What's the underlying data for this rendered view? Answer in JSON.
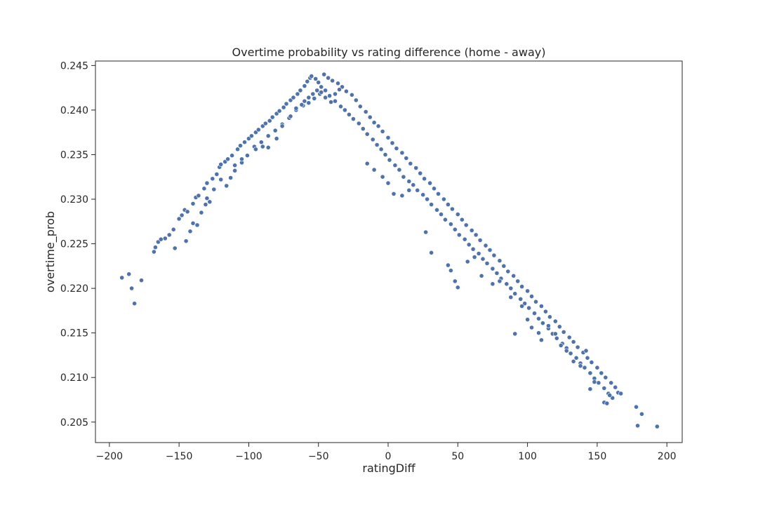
{
  "chart_data": {
    "type": "scatter",
    "title": "Overtime probability vs rating difference (home - away)",
    "xlabel": "ratingDiff",
    "ylabel": "overtime_prob",
    "xlim": [
      -210,
      211
    ],
    "ylim": [
      0.2027,
      0.2455
    ],
    "xticks": [
      -200,
      -150,
      -100,
      -50,
      0,
      50,
      100,
      150,
      200
    ],
    "yticks": [
      0.205,
      0.21,
      0.215,
      0.22,
      0.225,
      0.23,
      0.235,
      0.24,
      0.245
    ],
    "ytick_labels": [
      "0.205",
      "0.210",
      "0.215",
      "0.220",
      "0.225",
      "0.230",
      "0.235",
      "0.240",
      "0.245"
    ],
    "grid": false,
    "legend": "none",
    "color": "#4c72b0",
    "series": [
      {
        "points": [
          [
            -191,
            0.2212
          ],
          [
            -186,
            0.2216
          ],
          [
            -184,
            0.22
          ],
          [
            -182,
            0.2183
          ],
          [
            -177,
            0.2209
          ],
          [
            -168,
            0.2241
          ],
          [
            -167,
            0.2246
          ],
          [
            -165,
            0.2252
          ],
          [
            -163,
            0.2255
          ],
          [
            -160,
            0.2256
          ],
          [
            -157,
            0.226
          ],
          [
            -154,
            0.2266
          ],
          [
            -153,
            0.2245
          ],
          [
            -150,
            0.2278
          ],
          [
            -148,
            0.2282
          ],
          [
            -146,
            0.2288
          ],
          [
            -145,
            0.2253
          ],
          [
            -144,
            0.2286
          ],
          [
            -142,
            0.2264
          ],
          [
            -140,
            0.2295
          ],
          [
            -138,
            0.2302
          ],
          [
            -137,
            0.2271
          ],
          [
            -136,
            0.2304
          ],
          [
            -134,
            0.2285
          ],
          [
            -132,
            0.2312
          ],
          [
            -131,
            0.2294
          ],
          [
            -130,
            0.2318
          ],
          [
            -128,
            0.2297
          ],
          [
            -126,
            0.2323
          ],
          [
            -125,
            0.2311
          ],
          [
            -123,
            0.2328
          ],
          [
            -121,
            0.2336
          ],
          [
            -120,
            0.2339
          ],
          [
            -117,
            0.2342
          ],
          [
            -116,
            0.2315
          ],
          [
            -115,
            0.2345
          ],
          [
            -113,
            0.2324
          ],
          [
            -112,
            0.2349
          ],
          [
            -110,
            0.2332
          ],
          [
            -108,
            0.2356
          ],
          [
            -106,
            0.236
          ],
          [
            -105,
            0.2341
          ],
          [
            -103,
            0.2364
          ],
          [
            -101,
            0.2349
          ],
          [
            -100,
            0.2368
          ],
          [
            -98,
            0.2371
          ],
          [
            -96,
            0.2359
          ],
          [
            -95,
            0.2375
          ],
          [
            -93,
            0.2378
          ],
          [
            -91,
            0.2364
          ],
          [
            -90,
            0.2382
          ],
          [
            -88,
            0.2385
          ],
          [
            -86,
            0.2371
          ],
          [
            -85,
            0.2388
          ],
          [
            -83,
            0.2392
          ],
          [
            -81,
            0.2377
          ],
          [
            -80,
            0.2396
          ],
          [
            -78,
            0.2399
          ],
          [
            -76,
            0.2384
          ],
          [
            -75,
            0.2403
          ],
          [
            -73,
            0.2407
          ],
          [
            -71,
            0.2391
          ],
          [
            -70,
            0.2411
          ],
          [
            -68,
            0.2414
          ],
          [
            -66,
            0.24
          ],
          [
            -65,
            0.2418
          ],
          [
            -63,
            0.2422
          ],
          [
            -61,
            0.2405
          ],
          [
            -60,
            0.2427
          ],
          [
            -58,
            0.2432
          ],
          [
            -57,
            0.2408
          ],
          [
            -56,
            0.2436
          ],
          [
            -55,
            0.2438
          ],
          [
            -53,
            0.2413
          ],
          [
            -52,
            0.2435
          ],
          [
            -50,
            0.2431
          ],
          [
            -49,
            0.2418
          ],
          [
            -48,
            0.2426
          ],
          [
            -46,
            0.244
          ],
          [
            -45,
            0.2422
          ],
          [
            -43,
            0.2436
          ],
          [
            -42,
            0.2416
          ],
          [
            -40,
            0.2433
          ],
          [
            -38,
            0.241
          ],
          [
            -36,
            0.243
          ],
          [
            -34,
            0.2404
          ],
          [
            -33,
            0.2426
          ],
          [
            -31,
            0.24
          ],
          [
            -30,
            0.2421
          ],
          [
            -28,
            0.2395
          ],
          [
            -26,
            0.2417
          ],
          [
            -25,
            0.239
          ],
          [
            -23,
            0.2411
          ],
          [
            -21,
            0.2385
          ],
          [
            -20,
            0.2404
          ],
          [
            -18,
            0.2379
          ],
          [
            -16,
            0.2398
          ],
          [
            -15,
            0.2373
          ],
          [
            -13,
            0.2392
          ],
          [
            -11,
            0.2367
          ],
          [
            -10,
            0.2386
          ],
          [
            -8,
            0.2361
          ],
          [
            -7,
            0.2382
          ],
          [
            -5,
            0.2356
          ],
          [
            -4,
            0.2376
          ],
          [
            -2,
            0.235
          ],
          [
            0,
            0.2369
          ],
          [
            1,
            0.2344
          ],
          [
            3,
            0.2363
          ],
          [
            5,
            0.2338
          ],
          [
            6,
            0.2357
          ],
          [
            8,
            0.2333
          ],
          [
            10,
            0.2352
          ],
          [
            11,
            0.2325
          ],
          [
            13,
            0.2346
          ],
          [
            15,
            0.232
          ],
          [
            16,
            0.234
          ],
          [
            18,
            0.2316
          ],
          [
            20,
            0.2335
          ],
          [
            21,
            0.231
          ],
          [
            23,
            0.2329
          ],
          [
            25,
            0.2305
          ],
          [
            26,
            0.2323
          ],
          [
            28,
            0.23
          ],
          [
            30,
            0.2318
          ],
          [
            31,
            0.2294
          ],
          [
            33,
            0.2312
          ],
          [
            35,
            0.2288
          ],
          [
            36,
            0.2306
          ],
          [
            38,
            0.2283
          ],
          [
            40,
            0.23
          ],
          [
            41,
            0.2277
          ],
          [
            43,
            0.2294
          ],
          [
            45,
            0.2272
          ],
          [
            46,
            0.2289
          ],
          [
            48,
            0.2266
          ],
          [
            50,
            0.2283
          ],
          [
            51,
            0.226
          ],
          [
            53,
            0.2277
          ],
          [
            55,
            0.2255
          ],
          [
            56,
            0.2271
          ],
          [
            58,
            0.2249
          ],
          [
            60,
            0.2265
          ],
          [
            61,
            0.2244
          ],
          [
            63,
            0.226
          ],
          [
            65,
            0.2239
          ],
          [
            66,
            0.2254
          ],
          [
            68,
            0.2233
          ],
          [
            70,
            0.2248
          ],
          [
            71,
            0.2228
          ],
          [
            73,
            0.2243
          ],
          [
            75,
            0.2222
          ],
          [
            76,
            0.2237
          ],
          [
            78,
            0.2217
          ],
          [
            80,
            0.2231
          ],
          [
            81,
            0.2211
          ],
          [
            83,
            0.2225
          ],
          [
            85,
            0.2205
          ],
          [
            86,
            0.2219
          ],
          [
            88,
            0.22
          ],
          [
            90,
            0.2214
          ],
          [
            91,
            0.2194
          ],
          [
            93,
            0.2208
          ],
          [
            95,
            0.2188
          ],
          [
            96,
            0.2202
          ],
          [
            98,
            0.2183
          ],
          [
            100,
            0.2197
          ],
          [
            101,
            0.2178
          ],
          [
            103,
            0.2191
          ],
          [
            105,
            0.2172
          ],
          [
            106,
            0.2185
          ],
          [
            108,
            0.2166
          ],
          [
            110,
            0.218
          ],
          [
            111,
            0.2161
          ],
          [
            113,
            0.2174
          ],
          [
            115,
            0.2155
          ],
          [
            116,
            0.2168
          ],
          [
            118,
            0.2149
          ],
          [
            120,
            0.2163
          ],
          [
            121,
            0.2144
          ],
          [
            123,
            0.2157
          ],
          [
            125,
            0.2138
          ],
          [
            126,
            0.2151
          ],
          [
            128,
            0.2133
          ],
          [
            130,
            0.2145
          ],
          [
            131,
            0.2127
          ],
          [
            133,
            0.214
          ],
          [
            135,
            0.2122
          ],
          [
            136,
            0.2134
          ],
          [
            138,
            0.2116
          ],
          [
            140,
            0.2128
          ],
          [
            141,
            0.2111
          ],
          [
            143,
            0.2122
          ],
          [
            145,
            0.2105
          ],
          [
            146,
            0.2117
          ],
          [
            148,
            0.2099
          ],
          [
            150,
            0.2111
          ],
          [
            151,
            0.2094
          ],
          [
            153,
            0.2105
          ],
          [
            155,
            0.2088
          ],
          [
            156,
            0.21
          ],
          [
            158,
            0.2082
          ],
          [
            160,
            0.2094
          ],
          [
            161,
            0.2077
          ],
          [
            163,
            0.2089
          ],
          [
            165,
            0.2083
          ],
          [
            167,
            0.2082
          ],
          [
            145,
            0.2087
          ],
          [
            148,
            0.2095
          ],
          [
            155,
            0.2072
          ],
          [
            157,
            0.2071
          ],
          [
            159,
            0.208
          ],
          [
            178,
            0.2067
          ],
          [
            179,
            0.2046
          ],
          [
            182,
            0.2059
          ],
          [
            193,
            0.2045
          ],
          [
            -15,
            0.234
          ],
          [
            -10,
            0.2333
          ],
          [
            -4,
            0.2325
          ],
          [
            0,
            0.2318
          ],
          [
            4,
            0.2306
          ],
          [
            10,
            0.2304
          ],
          [
            15,
            0.231
          ],
          [
            27,
            0.2263
          ],
          [
            31,
            0.224
          ],
          [
            43,
            0.2226
          ],
          [
            45,
            0.222
          ],
          [
            48,
            0.2208
          ],
          [
            50,
            0.2201
          ],
          [
            57,
            0.223
          ],
          [
            62,
            0.2235
          ],
          [
            67,
            0.2214
          ],
          [
            75,
            0.2205
          ],
          [
            80,
            0.2208
          ],
          [
            88,
            0.219
          ],
          [
            91,
            0.2149
          ],
          [
            96,
            0.218
          ],
          [
            100,
            0.2165
          ],
          [
            103,
            0.2156
          ],
          [
            108,
            0.215
          ],
          [
            110,
            0.2142
          ],
          [
            115,
            0.2158
          ],
          [
            120,
            0.2149
          ],
          [
            124,
            0.2136
          ],
          [
            128,
            0.213
          ],
          [
            133,
            0.2118
          ],
          [
            138,
            0.2113
          ],
          [
            142,
            0.213
          ],
          [
            -60,
            0.241
          ],
          [
            -57,
            0.2414
          ],
          [
            -54,
            0.2418
          ],
          [
            -51,
            0.2422
          ],
          [
            -48,
            0.242
          ],
          [
            -45,
            0.2414
          ],
          [
            -41,
            0.2409
          ],
          [
            -38,
            0.2418
          ],
          [
            -35,
            0.2423
          ],
          [
            -95,
            0.2356
          ],
          [
            -90,
            0.2359
          ],
          [
            -86,
            0.2358
          ],
          [
            -80,
            0.2368
          ],
          [
            -76,
            0.2382
          ],
          [
            -70,
            0.2393
          ],
          [
            -66,
            0.2402
          ],
          [
            -62,
            0.2406
          ],
          [
            -140,
            0.2273
          ],
          [
            -130,
            0.2301
          ],
          [
            -120,
            0.2322
          ],
          [
            -110,
            0.2338
          ],
          [
            -105,
            0.2345
          ]
        ]
      }
    ]
  }
}
